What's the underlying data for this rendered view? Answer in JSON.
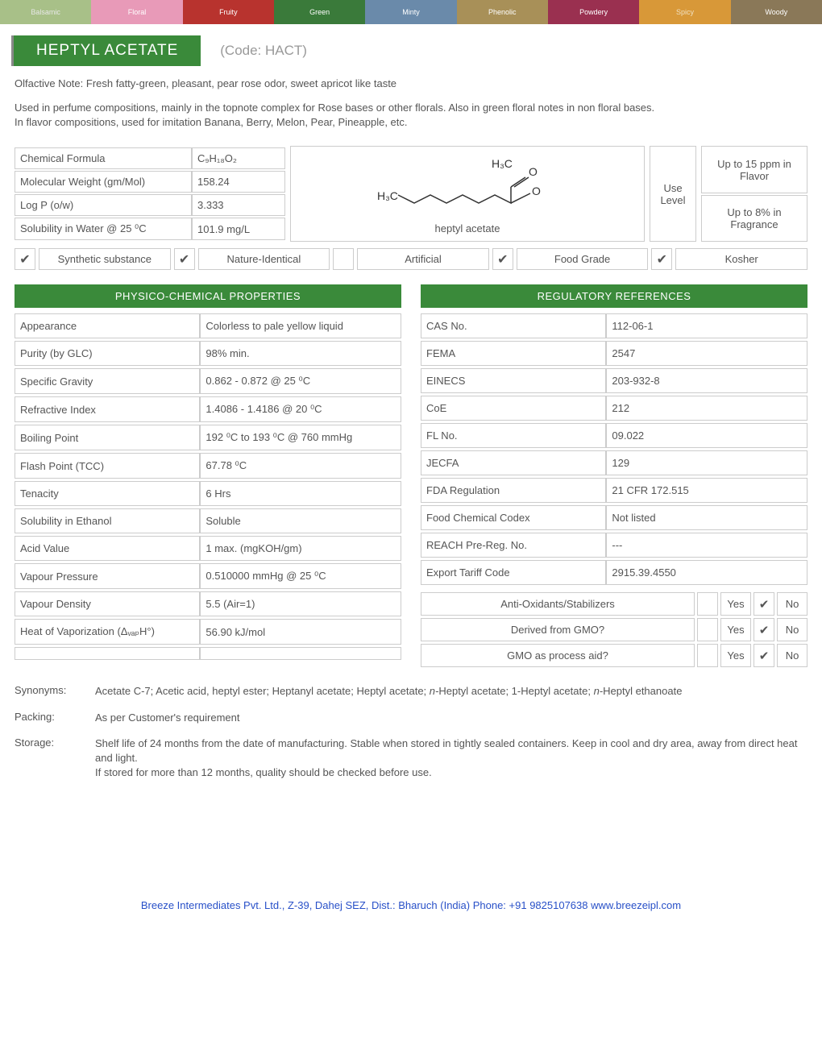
{
  "tabs": [
    "Balsamic",
    "Floral",
    "Fruity",
    "Green",
    "Minty",
    "Phenolic",
    "Powdery",
    "Spicy",
    "Woody"
  ],
  "title": "HEPTYL ACETATE",
  "code": "(Code: HACT)",
  "olfactive_label": "Olfactive Note:",
  "olfactive_value": "Fresh fatty-green, pleasant, pear rose odor, sweet apricot like taste",
  "description": "Used in perfume compositions, mainly in the topnote complex for Rose bases or other florals. Also in green floral notes in non floral bases.\nIn flavor compositions, used for imitation Banana, Berry, Melon, Pear, Pineapple, etc.",
  "basic_props": [
    {
      "label": "Chemical Formula",
      "value": "C₉H₁₈O₂"
    },
    {
      "label": "Molecular Weight (gm/Mol)",
      "value": "158.24"
    },
    {
      "label": "Log P (o/w)",
      "value": "3.333"
    },
    {
      "label": "Solubility in Water @ 25 ⁰C",
      "value": "101.9 mg/L"
    }
  ],
  "structure_label": "heptyl acetate",
  "use_level_label": "Use Level",
  "use_flavor": "Up to 15 ppm in Flavor",
  "use_fragrance": "Up to 8% in Fragrance",
  "badges": [
    {
      "checked": true,
      "label": "Synthetic substance"
    },
    {
      "checked": true,
      "label": "Nature-Identical"
    },
    {
      "checked": false,
      "label": "Artificial"
    },
    {
      "checked": true,
      "label": "Food Grade"
    },
    {
      "checked": true,
      "label": "Kosher"
    }
  ],
  "physico_header": "PHYSICO-CHEMICAL PROPERTIES",
  "physico": [
    {
      "label": "Appearance",
      "value": "Colorless to pale yellow liquid"
    },
    {
      "label": "Purity (by GLC)",
      "value": "98% min."
    },
    {
      "label": "Specific Gravity",
      "value": "0.862 - 0.872 @ 25 ⁰C"
    },
    {
      "label": "Refractive Index",
      "value": "1.4086 - 1.4186 @ 20 ⁰C"
    },
    {
      "label": "Boiling Point",
      "value": "192 ⁰C to 193 ⁰C @ 760 mmHg"
    },
    {
      "label": "Flash Point (TCC)",
      "value": "67.78 ⁰C"
    },
    {
      "label": "Tenacity",
      "value": "6 Hrs"
    },
    {
      "label": "Solubility in Ethanol",
      "value": "Soluble"
    },
    {
      "label": "Acid Value",
      "value": "1 max. (mgKOH/gm)"
    },
    {
      "label": "Vapour Pressure",
      "value": "0.510000 mmHg @ 25 ⁰C"
    },
    {
      "label": "Vapour Density",
      "value": "5.5 (Air=1)"
    },
    {
      "label": "Heat of Vaporization (ΔᵥₐₚH°)",
      "value": "56.90 kJ/mol"
    },
    {
      "label": "",
      "value": ""
    }
  ],
  "regulatory_header": "REGULATORY REFERENCES",
  "regulatory": [
    {
      "label": "CAS No.",
      "value": "112-06-1"
    },
    {
      "label": "FEMA",
      "value": "2547"
    },
    {
      "label": "EINECS",
      "value": "203-932-8"
    },
    {
      "label": "CoE",
      "value": "212"
    },
    {
      "label": "FL No.",
      "value": "09.022"
    },
    {
      "label": "JECFA",
      "value": "129"
    },
    {
      "label": "FDA Regulation",
      "value": "21 CFR 172.515"
    },
    {
      "label": "Food Chemical Codex",
      "value": "Not listed"
    },
    {
      "label": "REACH Pre-Reg. No.",
      "value": "---"
    },
    {
      "label": "Export Tariff Code",
      "value": "2915.39.4550"
    }
  ],
  "yn_rows": [
    {
      "label": "Anti-Oxidants/Stabilizers",
      "yes": false,
      "no": true
    },
    {
      "label": "Derived from GMO?",
      "yes": false,
      "no": true
    },
    {
      "label": "GMO as process aid?",
      "yes": false,
      "no": true
    }
  ],
  "yes_text": "Yes",
  "no_text": "No",
  "synonyms_label": "Synonyms:",
  "synonyms_value": "Acetate C-7; Acetic acid, heptyl ester; Heptanyl acetate; Heptyl acetate; n-Heptyl acetate; 1-Heptyl acetate; n-Heptyl ethanoate",
  "packing_label": "Packing:",
  "packing_value": "As per Customer's requirement",
  "storage_label": "Storage:",
  "storage_value": "Shelf life of 24 months from the date of manufacturing. Stable when stored in tightly sealed containers. Keep in cool and dry area, away from direct heat and light.\nIf stored for more than 12 months, quality should be checked before use.",
  "footer_company": "Breeze Intermediates Pvt. Ltd., Z-39, Dahej SEZ, Dist.: Bharuch (India) Phone: +91 9825107638  ",
  "footer_url": "www.breezeipl.com"
}
